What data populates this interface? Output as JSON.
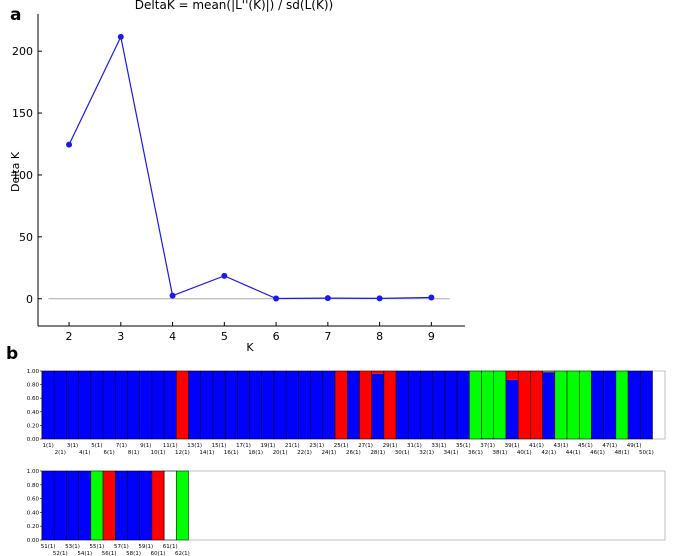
{
  "panel_labels": {
    "a": "a",
    "b": "b"
  },
  "colors": {
    "line": "#1a1aee",
    "blue": "#0000ff",
    "red": "#ff0000",
    "green": "#00ff00",
    "zero_line": "#aaaaaa"
  },
  "chart_data": [
    {
      "type": "line",
      "title": "DeltaK = mean(|L''(K)|) / sd(L(K))",
      "xlabel": "K",
      "ylabel": "Delta K",
      "x": [
        2,
        3,
        4,
        5,
        6,
        7,
        8,
        9
      ],
      "series": [
        {
          "values": [
            124.5,
            211.5,
            2.5,
            18.5,
            0.2,
            0.5,
            0.3,
            1.0
          ]
        }
      ],
      "xlim": [
        1.4,
        9.65
      ],
      "ylim": [
        -22,
        230
      ],
      "xticks": [
        "2",
        "3",
        "4",
        "5",
        "6",
        "7",
        "8",
        "9"
      ],
      "yticks": [
        "0",
        "50",
        "100",
        "150",
        "200"
      ],
      "ytick_values": [
        0,
        50,
        100,
        150,
        200
      ],
      "zero_line": true,
      "grid": false
    },
    {
      "type": "bar",
      "stacked": true,
      "description": "STRUCTURE membership plot, K = 3",
      "yticks": [
        "0.00",
        "0.20",
        "0.40",
        "0.60",
        "0.80",
        "1.00"
      ],
      "ytick_values": [
        0,
        0.2,
        0.4,
        0.6,
        0.8,
        1.0
      ],
      "ylim": [
        0,
        1
      ],
      "categories": [
        "1(1)",
        "2(1)",
        "3(1)",
        "4(1)",
        "5(1)",
        "6(1)",
        "7(1)",
        "8(1)",
        "9(1)",
        "10(1)",
        "11(1)",
        "12(1)",
        "13(1)",
        "14(1)",
        "15(1)",
        "16(1)",
        "17(1)",
        "18(1)",
        "19(1)",
        "20(1)",
        "21(1)",
        "22(1)",
        "23(1)",
        "24(1)",
        "25(1)",
        "26(1)",
        "27(1)",
        "28(1)",
        "29(1)",
        "30(1)",
        "31(1)",
        "32(1)",
        "33(1)",
        "34(1)",
        "35(1)",
        "36(1)",
        "37(1)",
        "38(1)",
        "39(1)",
        "40(1)",
        "41(1)",
        "42(1)",
        "43(1)",
        "44(1)",
        "45(1)",
        "46(1)",
        "47(1)",
        "48(1)",
        "49(1)",
        "50(1)",
        "51(1)",
        "52(1)",
        "53(1)",
        "54(1)",
        "55(1)",
        "56(1)",
        "57(1)",
        "58(1)",
        "59(1)",
        "60(1)",
        "61(1)",
        "62(1)"
      ],
      "series": [
        {
          "color": "blue",
          "values": [
            1,
            1,
            1,
            1,
            1,
            1,
            1,
            1,
            1,
            1,
            1,
            0,
            1,
            1,
            1,
            1,
            1,
            1,
            1,
            1,
            1,
            1,
            1,
            1,
            0,
            1,
            0,
            0.96,
            0,
            1,
            1,
            1,
            1,
            1,
            1,
            0,
            0.01,
            0.01,
            0.87,
            0,
            0,
            0.98,
            0,
            0,
            0,
            1,
            1,
            0,
            1,
            1,
            1,
            1,
            1,
            1,
            0,
            0,
            1,
            1,
            1,
            0,
            0,
            0
          ]
        },
        {
          "color": "red",
          "values": [
            0,
            0,
            0,
            0,
            0,
            0,
            0,
            0,
            0,
            0,
            0,
            1,
            0,
            0,
            0,
            0,
            0,
            0,
            0,
            0,
            0,
            0,
            0,
            0,
            1,
            0,
            1,
            0.04,
            1,
            0,
            0,
            0,
            0,
            0,
            0,
            0,
            0,
            0,
            0.13,
            1,
            1,
            0.01,
            0,
            0,
            0,
            0,
            0,
            0,
            0,
            0,
            0,
            0,
            0,
            0,
            0,
            1,
            0,
            0,
            0,
            1,
            0,
            0
          ]
        },
        {
          "color": "green",
          "values": [
            0,
            0,
            0,
            0,
            0,
            0,
            0,
            0,
            0,
            0,
            0,
            0,
            0,
            0,
            0,
            0,
            0,
            0,
            0,
            0,
            0,
            0,
            0,
            0,
            0,
            0,
            0,
            0,
            0,
            0,
            0,
            0,
            0,
            0,
            0,
            1,
            0.99,
            0.99,
            0,
            0,
            0,
            0.01,
            1,
            1,
            1,
            0,
            0,
            1,
            0,
            0,
            0,
            0,
            0,
            0,
            1,
            0,
            0,
            0,
            0,
            0,
            0,
            1
          ]
        }
      ]
    }
  ]
}
